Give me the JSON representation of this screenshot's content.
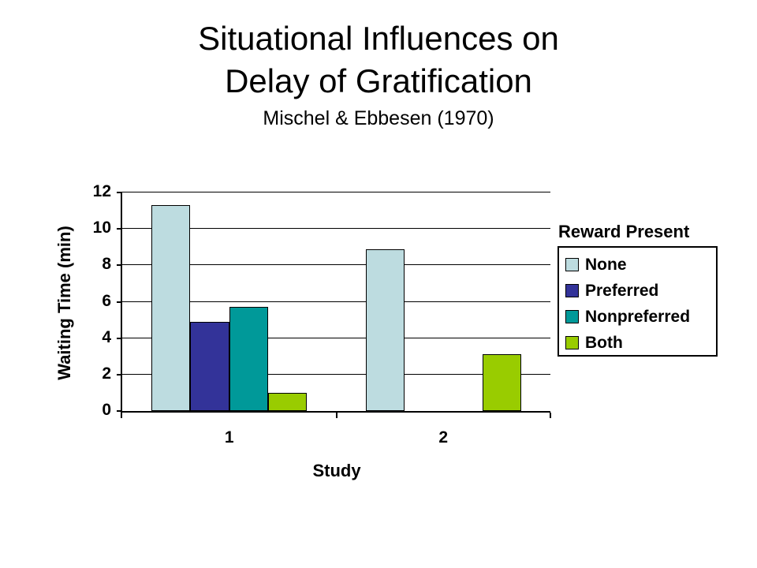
{
  "slide": {
    "title_line1": "Situational Influences on",
    "title_line2": "Delay of Gratification",
    "subtitle": "Mischel & Ebbesen (1970)"
  },
  "chart_data": {
    "type": "bar",
    "categories": [
      "1",
      "2"
    ],
    "series": [
      {
        "name": "None",
        "color": "#BDDCE0",
        "values": [
          11.3,
          8.9
        ]
      },
      {
        "name": "Preferred",
        "color": "#333399",
        "values": [
          4.9,
          null
        ]
      },
      {
        "name": "Nonpreferred",
        "color": "#009999",
        "values": [
          5.7,
          null
        ]
      },
      {
        "name": "Both",
        "color": "#99CC00",
        "values": [
          1.0,
          3.1
        ]
      }
    ],
    "xlabel": "Study",
    "ylabel": "Waiting Time (min)",
    "ylim": [
      0,
      12
    ],
    "yticks": [
      0,
      2,
      4,
      6,
      8,
      10,
      12
    ],
    "grid": true,
    "legend_title": "Reward Present",
    "legend_position": "right",
    "axis_color": "#000000",
    "bar_border_color": "#000000"
  }
}
